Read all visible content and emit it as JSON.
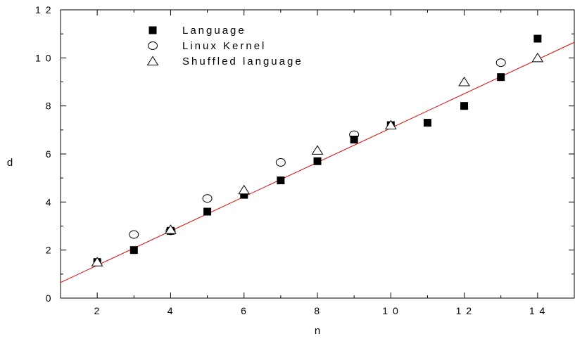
{
  "chart_data": {
    "type": "scatter",
    "title": "",
    "xlabel": "n",
    "ylabel": "d",
    "xlim": [
      1,
      15
    ],
    "ylim": [
      0,
      12
    ],
    "x_ticks": [
      2,
      4,
      6,
      8,
      10,
      12,
      14
    ],
    "x_tick_labels": [
      "2",
      "4",
      "6",
      "8",
      "1 0",
      "1 2",
      "1 4"
    ],
    "y_ticks": [
      0,
      2,
      4,
      6,
      8,
      10,
      12
    ],
    "y_tick_labels": [
      "0",
      "2",
      "4",
      "6",
      "8",
      "1 0",
      "1 2"
    ],
    "grid": false,
    "legend_position": "top-left",
    "series": [
      {
        "name": "Language",
        "marker": "filled-square",
        "color": "#000000",
        "points": [
          [
            2,
            1.5
          ],
          [
            3,
            2.0
          ],
          [
            4,
            2.8
          ],
          [
            5,
            3.6
          ],
          [
            6,
            4.3
          ],
          [
            7,
            4.9
          ],
          [
            8,
            5.7
          ],
          [
            9,
            6.6
          ],
          [
            10,
            7.2
          ],
          [
            11,
            7.3
          ],
          [
            12,
            8.0
          ],
          [
            13,
            9.2
          ],
          [
            14,
            10.8
          ]
        ]
      },
      {
        "name": "Linux Kernel",
        "marker": "open-circle",
        "color": "#000000",
        "points": [
          [
            3,
            2.65
          ],
          [
            4,
            2.8
          ],
          [
            5,
            4.15
          ],
          [
            7,
            5.65
          ],
          [
            9,
            6.8
          ],
          [
            13,
            9.8
          ]
        ]
      },
      {
        "name": "Shuffled language",
        "marker": "open-triangle",
        "color": "#000000",
        "points": [
          [
            2,
            1.5
          ],
          [
            4,
            2.85
          ],
          [
            6,
            4.5
          ],
          [
            8,
            6.15
          ],
          [
            10,
            7.2
          ],
          [
            12,
            9.0
          ],
          [
            14,
            10.0
          ]
        ]
      }
    ],
    "fit_line": {
      "color": "#e00000",
      "from": [
        1,
        0.65
      ],
      "to": [
        15,
        10.65
      ]
    }
  }
}
